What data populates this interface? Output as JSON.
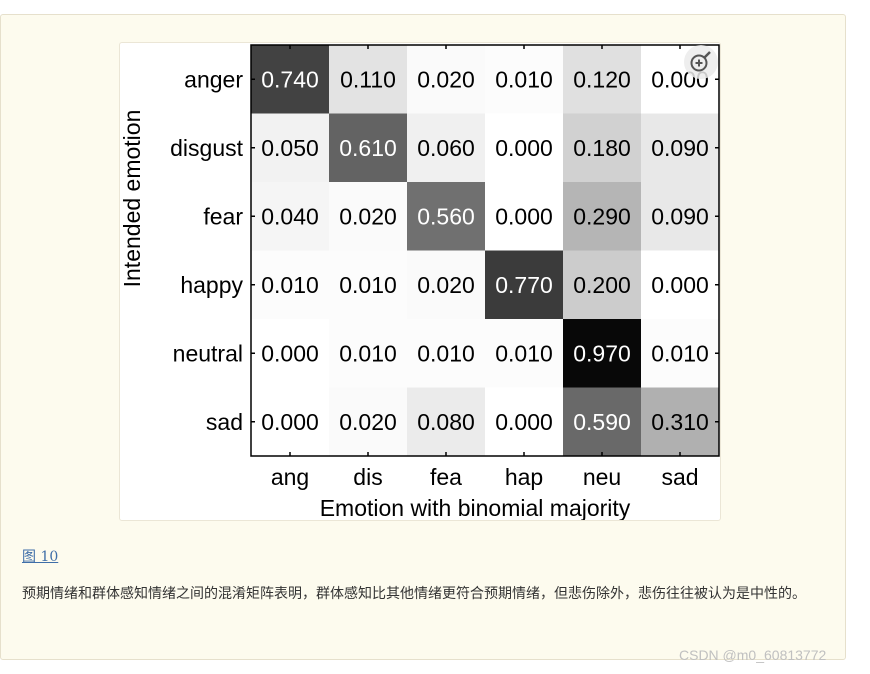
{
  "figure": {
    "label": "图 10",
    "caption": "预期情绪和群体感知情绪之间的混淆矩阵表明，群体感知比其他情绪更符合预期情绪，但悲伤除外，悲伤往往被认为是中性的。",
    "zoom_icon": "zoom-in-icon"
  },
  "watermark": "CSDN @m0_60813772",
  "chart_data": {
    "type": "heatmap",
    "title": "",
    "xlabel": "Emotion with binomial majority",
    "ylabel": "Intended emotion",
    "x_categories": [
      "ang",
      "dis",
      "fea",
      "hap",
      "neu",
      "sad"
    ],
    "y_categories": [
      "anger",
      "disgust",
      "fear",
      "happy",
      "neutral",
      "sad"
    ],
    "values": [
      [
        0.74,
        0.11,
        0.02,
        0.01,
        0.12,
        0.0
      ],
      [
        0.05,
        0.61,
        0.06,
        0.0,
        0.18,
        0.09
      ],
      [
        0.04,
        0.02,
        0.56,
        0.0,
        0.29,
        0.09
      ],
      [
        0.01,
        0.01,
        0.02,
        0.77,
        0.2,
        0.0
      ],
      [
        0.0,
        0.01,
        0.01,
        0.01,
        0.97,
        0.01
      ],
      [
        0.0,
        0.02,
        0.08,
        0.0,
        0.59,
        0.31
      ]
    ],
    "value_labels": [
      [
        "0.740",
        "0.110",
        "0.020",
        "0.010",
        "0.120",
        "0.000"
      ],
      [
        "0.050",
        "0.610",
        "0.060",
        "0.000",
        "0.180",
        "0.090"
      ],
      [
        "0.040",
        "0.020",
        "0.560",
        "0.000",
        "0.290",
        "0.090"
      ],
      [
        "0.010",
        "0.010",
        "0.020",
        "0.770",
        "0.200",
        "0.000"
      ],
      [
        "0.000",
        "0.010",
        "0.010",
        "0.010",
        "0.970",
        "0.010"
      ],
      [
        "0.000",
        "0.020",
        "0.080",
        "0.000",
        "0.590",
        "0.310"
      ]
    ],
    "colormap": "gray (white = 0, black = 1)",
    "value_range": [
      0,
      1
    ]
  }
}
